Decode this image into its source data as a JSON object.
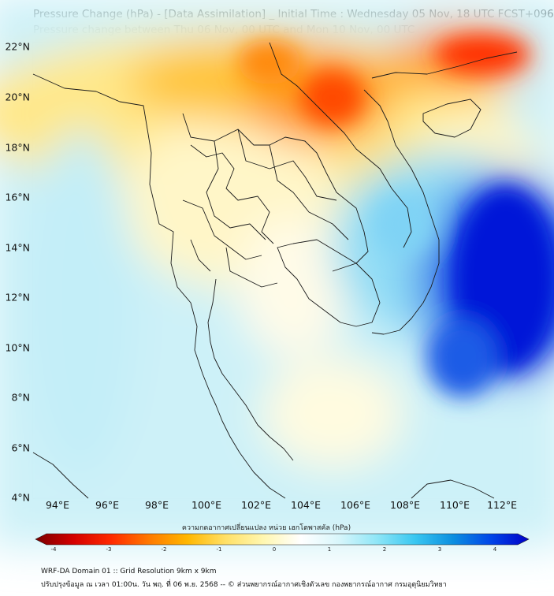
{
  "title_line1": "Pressure Change (hPa) - [Data Assimilation] _ Initial Time : Wednesday 05 Nov, 18 UTC FCST+096",
  "title_line2": "Pressure change between Thu 06 Nov, 00 UTC and Mon 10 Nov, 00 UTC",
  "lat_labels": [
    "22°N",
    "20°N",
    "18°N",
    "16°N",
    "14°N",
    "12°N",
    "10°N",
    "8°N",
    "6°N",
    "4°N"
  ],
  "lon_labels": [
    "94°E",
    "96°E",
    "98°E",
    "100°E",
    "102°E",
    "104°E",
    "106°E",
    "108°E",
    "110°E",
    "112°E"
  ],
  "colorbar": {
    "title": "ความกดอากาศเปลี่ยนแปลง หน่วย เฮกโตพาสคัล (hPa)",
    "ticks": [
      "-4",
      "-3",
      "-2",
      "-1",
      "0",
      "1",
      "2",
      "3",
      "4"
    ],
    "range": [
      -4.3,
      4.3
    ],
    "colors": [
      "#7a0000",
      "#d40000",
      "#ff2a00",
      "#ff7a00",
      "#ffb700",
      "#ffe066",
      "#fff7b0",
      "#ffffff",
      "#d8f6fb",
      "#8fe6f7",
      "#39c7f1",
      "#0b8fe0",
      "#0045e8",
      "#0000c8"
    ]
  },
  "footer_line1": "WRF-DA Domain 01 :: Grid Resolution 9km x 9km",
  "footer_line2": "ปรับปรุงข้อมูล ณ เวลา 01:00น. วัน พฤ. ที่ 06 พ.ย. 2568 -- © ส่วนพยากรณ์อากาศเชิงตัวเลข กองพยากรณ์อากาศ กรมอุตุนิยมวิทยา"
}
